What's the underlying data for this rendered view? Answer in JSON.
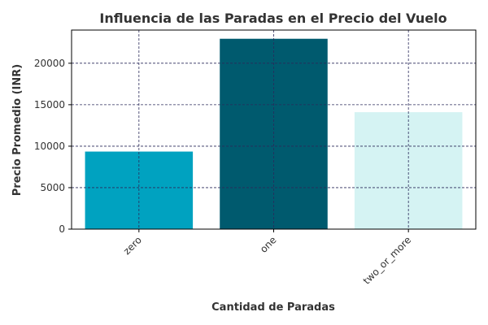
{
  "chart_data": {
    "type": "bar",
    "title": "Influencia de las Paradas en el Precio del Vuelo",
    "xlabel": "Cantidad de Paradas",
    "ylabel": "Precio Promedio (INR)",
    "categories": [
      "zero",
      "one",
      "two_or_more"
    ],
    "values": [
      9350,
      22950,
      14100
    ],
    "bar_colors": [
      "#00a2c0",
      "#005a6e",
      "#d5f3f3"
    ],
    "ylim": [
      0,
      24000
    ],
    "yticks": [
      0,
      5000,
      10000,
      15000,
      20000
    ],
    "grid": true,
    "grid_color": "#2a2a5a"
  }
}
